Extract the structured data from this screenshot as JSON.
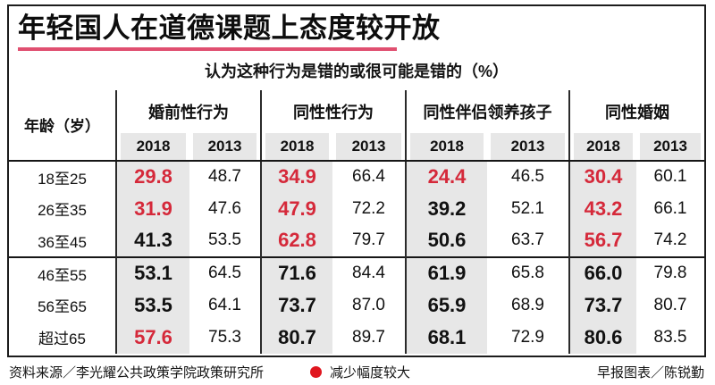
{
  "title": "年轻国人在道德课题上态度较开放",
  "subtitle": "认为这种行为是错的或很可能是错的（%）",
  "colors": {
    "accent_red": "#d5293a",
    "underline_pink": "#e04f70",
    "legend_dot_red": "#e0161f",
    "cell_gray": "#e7e7e7"
  },
  "table": {
    "age_header": "年龄（岁）",
    "groups": [
      {
        "label": "婚前性行为"
      },
      {
        "label": "同性性行为"
      },
      {
        "label": "同性伴侣领养孩子"
      },
      {
        "label": "同性婚姻"
      }
    ],
    "year_headers": [
      "2018",
      "2013"
    ],
    "rows": [
      {
        "age": "18至25",
        "section_start": false,
        "values": [
          {
            "v": "29.8",
            "red": true
          },
          {
            "v": "48.7",
            "red": false
          },
          {
            "v": "34.9",
            "red": true
          },
          {
            "v": "66.4",
            "red": false
          },
          {
            "v": "24.4",
            "red": true
          },
          {
            "v": "46.5",
            "red": false
          },
          {
            "v": "30.4",
            "red": true
          },
          {
            "v": "60.1",
            "red": false
          }
        ]
      },
      {
        "age": "26至35",
        "section_start": false,
        "values": [
          {
            "v": "31.9",
            "red": true
          },
          {
            "v": "47.6",
            "red": false
          },
          {
            "v": "47.9",
            "red": true
          },
          {
            "v": "72.2",
            "red": false
          },
          {
            "v": "39.2",
            "red": false
          },
          {
            "v": "52.1",
            "red": false
          },
          {
            "v": "43.2",
            "red": true
          },
          {
            "v": "66.1",
            "red": false
          }
        ]
      },
      {
        "age": "36至45",
        "section_start": false,
        "values": [
          {
            "v": "41.3",
            "red": false
          },
          {
            "v": "53.5",
            "red": false
          },
          {
            "v": "62.8",
            "red": true
          },
          {
            "v": "79.7",
            "red": false
          },
          {
            "v": "50.6",
            "red": false
          },
          {
            "v": "63.7",
            "red": false
          },
          {
            "v": "56.7",
            "red": true
          },
          {
            "v": "74.2",
            "red": false
          }
        ]
      },
      {
        "age": "46至55",
        "section_start": true,
        "values": [
          {
            "v": "53.1",
            "red": false
          },
          {
            "v": "64.5",
            "red": false
          },
          {
            "v": "71.6",
            "red": false
          },
          {
            "v": "84.4",
            "red": false
          },
          {
            "v": "61.9",
            "red": false
          },
          {
            "v": "65.8",
            "red": false
          },
          {
            "v": "66.0",
            "red": false
          },
          {
            "v": "79.8",
            "red": false
          }
        ]
      },
      {
        "age": "56至65",
        "section_start": false,
        "values": [
          {
            "v": "53.5",
            "red": false
          },
          {
            "v": "64.1",
            "red": false
          },
          {
            "v": "73.7",
            "red": false
          },
          {
            "v": "87.0",
            "red": false
          },
          {
            "v": "65.9",
            "red": false
          },
          {
            "v": "68.9",
            "red": false
          },
          {
            "v": "73.7",
            "red": false
          },
          {
            "v": "80.7",
            "red": false
          }
        ]
      },
      {
        "age": "超过65",
        "section_start": false,
        "values": [
          {
            "v": "57.6",
            "red": true
          },
          {
            "v": "75.3",
            "red": false
          },
          {
            "v": "80.7",
            "red": false
          },
          {
            "v": "89.7",
            "red": false
          },
          {
            "v": "68.1",
            "red": false
          },
          {
            "v": "72.9",
            "red": false
          },
          {
            "v": "80.6",
            "red": false
          },
          {
            "v": "83.5",
            "red": false
          }
        ]
      }
    ]
  },
  "footer": {
    "source": "资料来源／李光耀公共政策学院政策研究所",
    "legend": "减少幅度较大",
    "credit": "早报图表／陈锐勤"
  },
  "chart_data": {
    "type": "table",
    "title": "年轻国人在道德课题上态度较开放",
    "subtitle": "认为这种行为是错的或很可能是错的（%）",
    "row_label": "年龄（岁）",
    "categories": [
      "18至25",
      "26至35",
      "36至45",
      "46至55",
      "56至65",
      "超过65"
    ],
    "series": [
      {
        "name": "婚前性行为 2018",
        "values": [
          29.8,
          31.9,
          41.3,
          53.1,
          53.5,
          57.6
        ]
      },
      {
        "name": "婚前性行为 2013",
        "values": [
          48.7,
          47.6,
          53.5,
          64.5,
          64.1,
          75.3
        ]
      },
      {
        "name": "同性性行为 2018",
        "values": [
          34.9,
          47.9,
          62.8,
          71.6,
          73.7,
          80.7
        ]
      },
      {
        "name": "同性性行为 2013",
        "values": [
          66.4,
          72.2,
          79.7,
          84.4,
          87.0,
          89.7
        ]
      },
      {
        "name": "同性伴侣领养孩子 2018",
        "values": [
          24.4,
          39.2,
          50.6,
          61.9,
          65.9,
          68.1
        ]
      },
      {
        "name": "同性伴侣领养孩子 2013",
        "values": [
          46.5,
          52.1,
          63.7,
          65.8,
          68.9,
          72.9
        ]
      },
      {
        "name": "同性婚姻 2018",
        "values": [
          30.4,
          43.2,
          56.7,
          66.0,
          73.7,
          80.6
        ]
      },
      {
        "name": "同性婚姻 2013",
        "values": [
          60.1,
          66.1,
          74.2,
          79.8,
          80.7,
          83.5
        ]
      }
    ],
    "legend_note": "红色数字／红点＝减少幅度较大",
    "unit": "%"
  }
}
